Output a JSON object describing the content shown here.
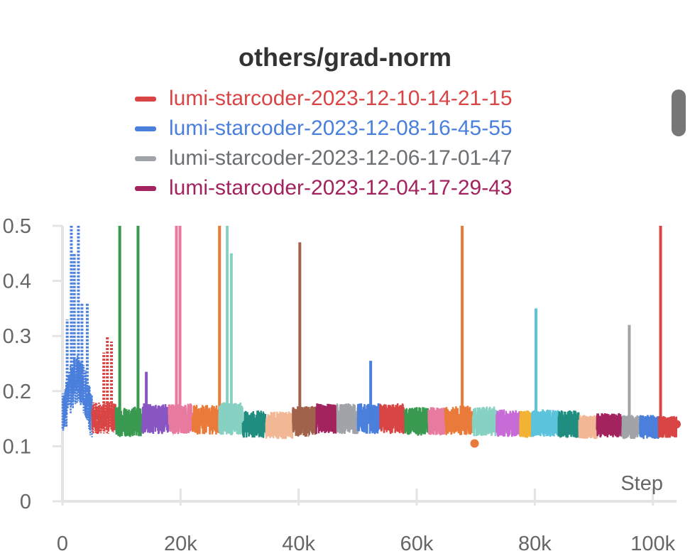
{
  "chart_data": {
    "type": "line",
    "title": "others/grad-norm",
    "xlabel": "Step",
    "ylabel": "",
    "xlim": [
      0,
      104000
    ],
    "ylim": [
      0,
      0.5
    ],
    "x_ticks": [
      0,
      20000,
      40000,
      60000,
      80000,
      100000
    ],
    "x_tick_labels": [
      "0",
      "20k",
      "40k",
      "60k",
      "80k",
      "100k"
    ],
    "y_ticks": [
      0,
      0.1,
      0.2,
      0.3,
      0.4,
      0.5
    ],
    "y_tick_labels": [
      "0",
      "0.1",
      "0.2",
      "0.3",
      "0.4",
      "0.5"
    ],
    "grid": false,
    "legend": {
      "position": "top-center",
      "entries": [
        {
          "label": "lumi-starcoder-2023-12-10-14-21-15",
          "color": "#d94545"
        },
        {
          "label": "lumi-starcoder-2023-12-08-16-45-55",
          "color": "#4a7fdc"
        },
        {
          "label": "lumi-starcoder-2023-12-06-17-01-47",
          "color": "#a0a4a8"
        },
        {
          "label": "lumi-starcoder-2023-12-04-17-29-43",
          "color": "#a3235f"
        }
      ]
    },
    "series": [
      {
        "x_start": 0,
        "x_end": 5000,
        "color": "#4a7fdc",
        "base": 0.2,
        "noise": 0.045,
        "dash": "dotted",
        "spikes": [
          {
            "x": 800,
            "y": 0.33
          },
          {
            "x": 1500,
            "y": 0.5
          },
          {
            "x": 2000,
            "y": 0.45
          },
          {
            "x": 2700,
            "y": 0.5
          },
          {
            "x": 3300,
            "y": 0.36
          },
          {
            "x": 4200,
            "y": 0.36
          }
        ]
      },
      {
        "x_start": 5000,
        "x_end": 9000,
        "color": "#d94545",
        "base": 0.152,
        "noise": 0.03,
        "dash": "dotted",
        "spikes": [
          {
            "x": 7000,
            "y": 0.27
          },
          {
            "x": 7600,
            "y": 0.3
          },
          {
            "x": 8300,
            "y": 0.29
          }
        ]
      },
      {
        "x_start": 9000,
        "x_end": 13500,
        "color": "#3a9950",
        "base": 0.145,
        "noise": 0.028,
        "dash": "solid",
        "spikes": [
          {
            "x": 9700,
            "y": 0.5
          },
          {
            "x": 12800,
            "y": 0.5
          }
        ]
      },
      {
        "x_start": 13500,
        "x_end": 18000,
        "color": "#8855c3",
        "base": 0.15,
        "noise": 0.028,
        "dash": "solid",
        "spikes": [
          {
            "x": 14200,
            "y": 0.235
          }
        ]
      },
      {
        "x_start": 18000,
        "x_end": 22000,
        "color": "#e87aa0",
        "base": 0.15,
        "noise": 0.028,
        "dash": "solid",
        "spikes": [
          {
            "x": 19300,
            "y": 0.5
          },
          {
            "x": 19900,
            "y": 0.5
          }
        ]
      },
      {
        "x_start": 22000,
        "x_end": 26500,
        "color": "#ea7a3a",
        "base": 0.148,
        "noise": 0.027,
        "dash": "solid",
        "spikes": [
          {
            "x": 26600,
            "y": 0.5
          }
        ]
      },
      {
        "x_start": 26500,
        "x_end": 30500,
        "color": "#86d1c1",
        "base": 0.15,
        "noise": 0.03,
        "dash": "solid",
        "spikes": [
          {
            "x": 27900,
            "y": 0.5
          },
          {
            "x": 28600,
            "y": 0.45
          }
        ]
      },
      {
        "x_start": 30500,
        "x_end": 34500,
        "color": "#1f8e80",
        "base": 0.14,
        "noise": 0.025,
        "dash": "solid",
        "spikes": []
      },
      {
        "x_start": 34500,
        "x_end": 39000,
        "color": "#f2b895",
        "base": 0.138,
        "noise": 0.025,
        "dash": "solid",
        "spikes": []
      },
      {
        "x_start": 39000,
        "x_end": 43000,
        "color": "#a0624a",
        "base": 0.145,
        "noise": 0.028,
        "dash": "solid",
        "spikes": [
          {
            "x": 40200,
            "y": 0.47
          }
        ]
      },
      {
        "x_start": 43000,
        "x_end": 46500,
        "color": "#a3235f",
        "base": 0.15,
        "noise": 0.028,
        "dash": "solid",
        "spikes": []
      },
      {
        "x_start": 46500,
        "x_end": 50000,
        "color": "#a0a4a8",
        "base": 0.15,
        "noise": 0.028,
        "dash": "solid",
        "spikes": []
      },
      {
        "x_start": 50000,
        "x_end": 53800,
        "color": "#4a7fdc",
        "base": 0.15,
        "noise": 0.028,
        "dash": "solid",
        "spikes": [
          {
            "x": 52200,
            "y": 0.255
          }
        ]
      },
      {
        "x_start": 53800,
        "x_end": 58000,
        "color": "#d94545",
        "base": 0.15,
        "noise": 0.028,
        "dash": "solid",
        "spikes": []
      },
      {
        "x_start": 58000,
        "x_end": 62000,
        "color": "#3a9950",
        "base": 0.145,
        "noise": 0.026,
        "dash": "solid",
        "spikes": []
      },
      {
        "x_start": 62000,
        "x_end": 64800,
        "color": "#e87aa0",
        "base": 0.145,
        "noise": 0.026,
        "dash": "solid",
        "spikes": []
      },
      {
        "x_start": 64800,
        "x_end": 69500,
        "color": "#ea7a3a",
        "base": 0.147,
        "noise": 0.027,
        "dash": "solid",
        "spikes": [
          {
            "x": 67700,
            "y": 0.5
          }
        ]
      },
      {
        "x_start": 69500,
        "x_end": 73500,
        "color": "#86d1c1",
        "base": 0.145,
        "noise": 0.027,
        "dash": "solid",
        "spikes": []
      },
      {
        "x_start": 73500,
        "x_end": 77500,
        "color": "#c76bd6",
        "base": 0.142,
        "noise": 0.025,
        "dash": "solid",
        "spikes": []
      },
      {
        "x_start": 77500,
        "x_end": 79500,
        "color": "#f2b233",
        "base": 0.14,
        "noise": 0.025,
        "dash": "solid",
        "spikes": []
      },
      {
        "x_start": 79500,
        "x_end": 84000,
        "color": "#5bc4dc",
        "base": 0.142,
        "noise": 0.025,
        "dash": "solid",
        "spikes": [
          {
            "x": 80200,
            "y": 0.35
          }
        ]
      },
      {
        "x_start": 84000,
        "x_end": 87500,
        "color": "#1f8e80",
        "base": 0.14,
        "noise": 0.025,
        "dash": "solid",
        "spikes": []
      },
      {
        "x_start": 87500,
        "x_end": 90500,
        "color": "#f2b895",
        "base": 0.135,
        "noise": 0.022,
        "dash": "solid",
        "spikes": []
      },
      {
        "x_start": 90500,
        "x_end": 94800,
        "color": "#a3235f",
        "base": 0.138,
        "noise": 0.022,
        "dash": "solid",
        "spikes": []
      },
      {
        "x_start": 94800,
        "x_end": 97800,
        "color": "#a0a4a8",
        "base": 0.135,
        "noise": 0.022,
        "dash": "solid",
        "spikes": [
          {
            "x": 96000,
            "y": 0.32
          }
        ]
      },
      {
        "x_start": 97800,
        "x_end": 101000,
        "color": "#4a7fdc",
        "base": 0.135,
        "noise": 0.022,
        "dash": "solid",
        "spikes": []
      },
      {
        "x_start": 101000,
        "x_end": 104000,
        "color": "#d94545",
        "base": 0.135,
        "noise": 0.02,
        "dash": "solid",
        "spikes": [
          {
            "x": 101300,
            "y": 0.5
          }
        ]
      }
    ],
    "end_markers": [
      {
        "x": 69800,
        "y": 0.105,
        "color": "#ea7a3a"
      },
      {
        "x": 104000,
        "y": 0.14,
        "color": "#d94545"
      }
    ]
  }
}
